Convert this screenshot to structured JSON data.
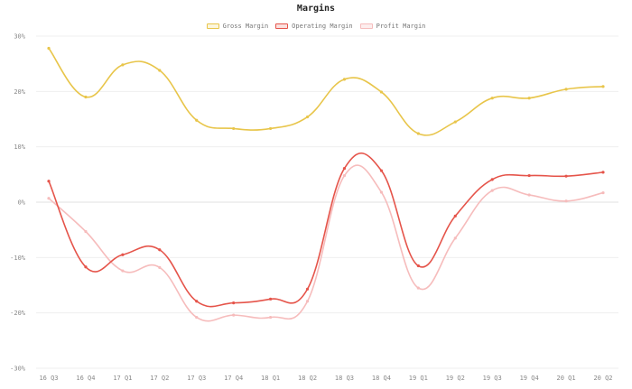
{
  "chart_data": {
    "type": "line",
    "title": "Margins",
    "xlabel": "",
    "ylabel": "",
    "ylim": [
      -30,
      30
    ],
    "yticks": [
      30,
      20,
      10,
      0,
      -10,
      -20,
      -30
    ],
    "ytick_labels": [
      "30%",
      "20%",
      "10%",
      "0%",
      "-10%",
      "-20%",
      "-30%"
    ],
    "categories": [
      "16 Q3",
      "16 Q4",
      "17 Q1",
      "17 Q2",
      "17 Q3",
      "17 Q4",
      "18 Q1",
      "18 Q2",
      "18 Q3",
      "18 Q4",
      "19 Q1",
      "19 Q2",
      "19 Q3",
      "19 Q4",
      "20 Q1",
      "20 Q2"
    ],
    "grid": true,
    "legend_position": "top-center",
    "series": [
      {
        "name": "Gross Margin",
        "color": "#e8c54a",
        "values": [
          27.8,
          19.0,
          24.8,
          23.8,
          14.8,
          13.3,
          13.3,
          15.4,
          22.2,
          19.9,
          12.4,
          14.5,
          18.8,
          18.8,
          20.4,
          20.9
        ]
      },
      {
        "name": "Operating Margin",
        "color": "#e5544a",
        "values": [
          3.8,
          -11.7,
          -9.5,
          -8.6,
          -17.9,
          -18.2,
          -17.5,
          -15.7,
          6.1,
          5.7,
          -11.5,
          -2.5,
          4.1,
          4.8,
          4.7,
          5.4
        ]
      },
      {
        "name": "Profit Margin",
        "color": "#f6bcbc",
        "values": [
          0.7,
          -5.3,
          -12.4,
          -11.8,
          -20.8,
          -20.4,
          -20.8,
          -17.9,
          4.8,
          1.8,
          -15.5,
          -6.5,
          2.1,
          1.3,
          0.2,
          1.7
        ]
      }
    ]
  }
}
